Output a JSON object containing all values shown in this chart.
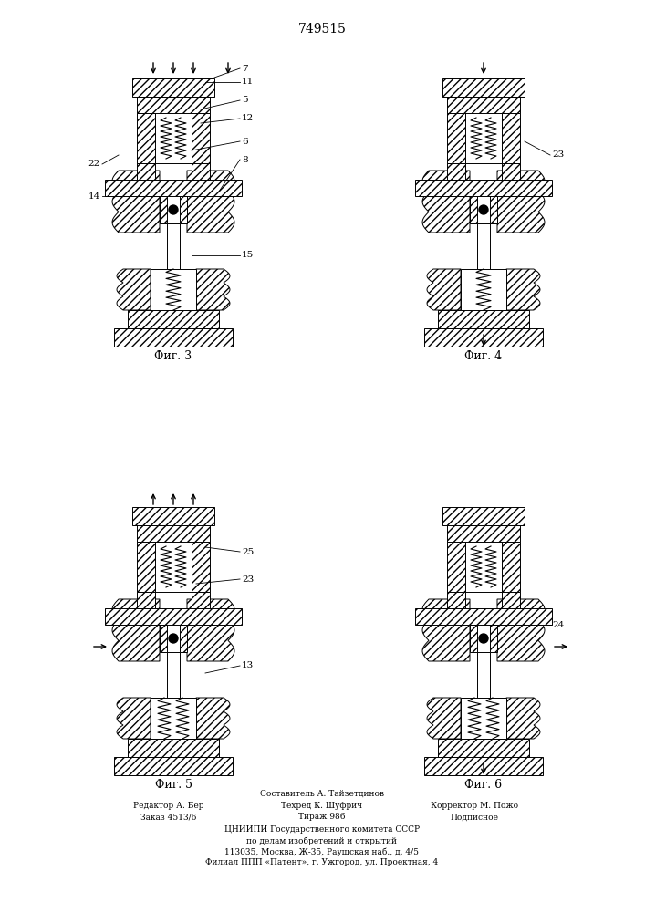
{
  "title": "749515",
  "fig3_label": "Фиг. 3",
  "fig4_label": "Фиг. 4",
  "fig5_label": "Фиг. 5",
  "fig6_label": "Фиг. 6",
  "footer_line1": "Составитель А. Тайзетдинов",
  "footer_left1": "Редактор А. Бер",
  "footer_center1": "Техред К. Шуфрич",
  "footer_right1": "Корректор М. Пожо",
  "footer_left2": "Заказ 4513/6",
  "footer_center2": "Тираж 986",
  "footer_right2": "Подписное",
  "footer_org": "ЦНИИПИ Государственного комитета СССР",
  "footer_org2": "по делам изобретений и открытий",
  "footer_addr1": "113035, Москва, Ж-35, Раушская наб., д. 4/5",
  "footer_addr2": "Филиал ППП «Патент», г. Ужгород, ул. Проектная, 4",
  "bg_color": "#ffffff",
  "line_color": "#000000"
}
